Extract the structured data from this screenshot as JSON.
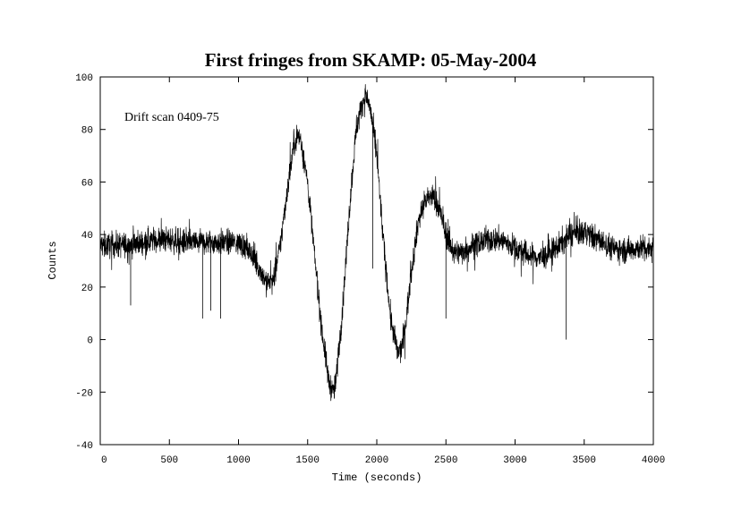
{
  "chart_data": {
    "type": "line",
    "title": "First fringes from SKAMP: 05-May-2004",
    "annotation": "Drift scan 0409-75",
    "xlabel": "Time (seconds)",
    "ylabel": "Counts",
    "xlim": [
      0,
      4000
    ],
    "ylim": [
      -40,
      100
    ],
    "x_ticks": [
      0,
      500,
      1000,
      1500,
      2000,
      2500,
      3000,
      3500,
      4000
    ],
    "y_ticks": [
      -40,
      -20,
      0,
      20,
      40,
      60,
      80,
      100
    ],
    "grid": false,
    "line_color": "#000000",
    "series": [
      {
        "x": [
          0,
          100,
          200,
          300,
          400,
          500,
          600,
          700,
          800,
          900,
          1000,
          1050,
          1100,
          1150,
          1200,
          1250,
          1300,
          1350,
          1400,
          1425,
          1450,
          1500,
          1550,
          1600,
          1650,
          1680,
          1700,
          1750,
          1800,
          1850,
          1900,
          1925,
          1950,
          2000,
          2050,
          2100,
          2150,
          2175,
          2200,
          2250,
          2300,
          2350,
          2400,
          2450,
          2500,
          2550,
          2600,
          2700,
          2800,
          2900,
          3000,
          3100,
          3200,
          3300,
          3400,
          3500,
          3600,
          3700,
          3800,
          3900,
          4000
        ],
        "y": [
          36,
          36,
          36,
          37,
          38,
          38,
          37,
          37,
          37,
          37,
          37,
          35,
          32,
          27,
          22,
          22,
          35,
          56,
          74,
          78,
          76,
          60,
          32,
          5,
          -15,
          -20,
          -18,
          10,
          48,
          80,
          91,
          92,
          89,
          70,
          36,
          8,
          -5,
          -4,
          2,
          26,
          45,
          53,
          55,
          50,
          40,
          34,
          33,
          36,
          38,
          38,
          35,
          32,
          31,
          35,
          40,
          41,
          38,
          35,
          34,
          35,
          35
        ]
      }
    ],
    "spikes": [
      {
        "x": 220,
        "y": 13
      },
      {
        "x": 740,
        "y": 8
      },
      {
        "x": 800,
        "y": 11
      },
      {
        "x": 870,
        "y": 8
      },
      {
        "x": 1970,
        "y": 27
      },
      {
        "x": 2500,
        "y": 8
      },
      {
        "x": 3370,
        "y": 0
      }
    ]
  }
}
